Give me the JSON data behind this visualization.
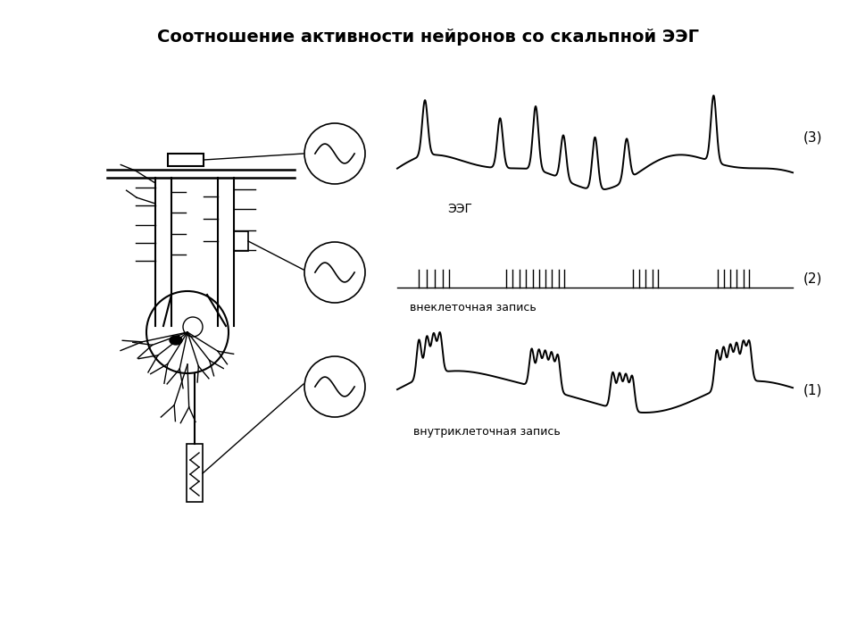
{
  "title": "Соотношение активности нейронов со скальпной ЭЭГ",
  "title_fontsize": 14,
  "title_bold": true,
  "label_eeg": "ЭЭГ",
  "label_extracell": "внеклеточная запись",
  "label_intracell": "внутриклеточная запись",
  "label_3": "(3)",
  "label_2": "(2)",
  "label_1": "(1)",
  "bg_color": "#ffffff",
  "line_color": "#000000",
  "fig_width": 9.6,
  "fig_height": 7.2,
  "dpi": 100
}
